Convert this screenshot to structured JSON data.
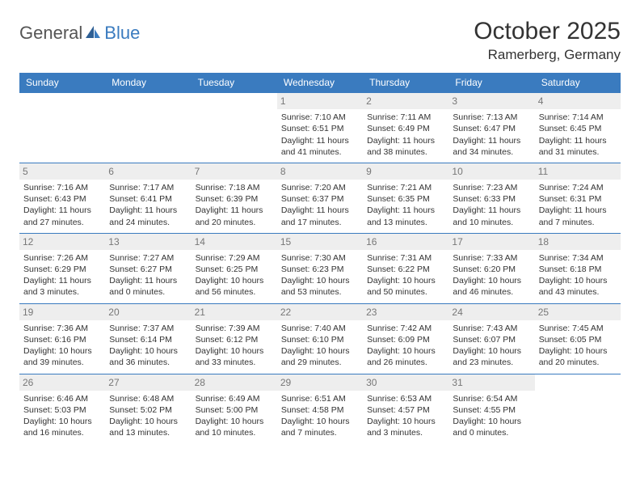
{
  "brand": {
    "part1": "General",
    "part2": "Blue"
  },
  "title": "October 2025",
  "location": "Ramerberg, Germany",
  "colors": {
    "header_bg": "#3a7bbf",
    "header_text": "#ffffff",
    "daynum_bg": "#eeeeee",
    "daynum_text": "#777777",
    "border": "#3a7bbf",
    "body_text": "#333333",
    "background": "#ffffff"
  },
  "weekdays": [
    "Sunday",
    "Monday",
    "Tuesday",
    "Wednesday",
    "Thursday",
    "Friday",
    "Saturday"
  ],
  "weeks": [
    [
      null,
      null,
      null,
      {
        "d": "1",
        "sr": "Sunrise: 7:10 AM",
        "ss": "Sunset: 6:51 PM",
        "dl1": "Daylight: 11 hours",
        "dl2": "and 41 minutes."
      },
      {
        "d": "2",
        "sr": "Sunrise: 7:11 AM",
        "ss": "Sunset: 6:49 PM",
        "dl1": "Daylight: 11 hours",
        "dl2": "and 38 minutes."
      },
      {
        "d": "3",
        "sr": "Sunrise: 7:13 AM",
        "ss": "Sunset: 6:47 PM",
        "dl1": "Daylight: 11 hours",
        "dl2": "and 34 minutes."
      },
      {
        "d": "4",
        "sr": "Sunrise: 7:14 AM",
        "ss": "Sunset: 6:45 PM",
        "dl1": "Daylight: 11 hours",
        "dl2": "and 31 minutes."
      }
    ],
    [
      {
        "d": "5",
        "sr": "Sunrise: 7:16 AM",
        "ss": "Sunset: 6:43 PM",
        "dl1": "Daylight: 11 hours",
        "dl2": "and 27 minutes."
      },
      {
        "d": "6",
        "sr": "Sunrise: 7:17 AM",
        "ss": "Sunset: 6:41 PM",
        "dl1": "Daylight: 11 hours",
        "dl2": "and 24 minutes."
      },
      {
        "d": "7",
        "sr": "Sunrise: 7:18 AM",
        "ss": "Sunset: 6:39 PM",
        "dl1": "Daylight: 11 hours",
        "dl2": "and 20 minutes."
      },
      {
        "d": "8",
        "sr": "Sunrise: 7:20 AM",
        "ss": "Sunset: 6:37 PM",
        "dl1": "Daylight: 11 hours",
        "dl2": "and 17 minutes."
      },
      {
        "d": "9",
        "sr": "Sunrise: 7:21 AM",
        "ss": "Sunset: 6:35 PM",
        "dl1": "Daylight: 11 hours",
        "dl2": "and 13 minutes."
      },
      {
        "d": "10",
        "sr": "Sunrise: 7:23 AM",
        "ss": "Sunset: 6:33 PM",
        "dl1": "Daylight: 11 hours",
        "dl2": "and 10 minutes."
      },
      {
        "d": "11",
        "sr": "Sunrise: 7:24 AM",
        "ss": "Sunset: 6:31 PM",
        "dl1": "Daylight: 11 hours",
        "dl2": "and 7 minutes."
      }
    ],
    [
      {
        "d": "12",
        "sr": "Sunrise: 7:26 AM",
        "ss": "Sunset: 6:29 PM",
        "dl1": "Daylight: 11 hours",
        "dl2": "and 3 minutes."
      },
      {
        "d": "13",
        "sr": "Sunrise: 7:27 AM",
        "ss": "Sunset: 6:27 PM",
        "dl1": "Daylight: 11 hours",
        "dl2": "and 0 minutes."
      },
      {
        "d": "14",
        "sr": "Sunrise: 7:29 AM",
        "ss": "Sunset: 6:25 PM",
        "dl1": "Daylight: 10 hours",
        "dl2": "and 56 minutes."
      },
      {
        "d": "15",
        "sr": "Sunrise: 7:30 AM",
        "ss": "Sunset: 6:23 PM",
        "dl1": "Daylight: 10 hours",
        "dl2": "and 53 minutes."
      },
      {
        "d": "16",
        "sr": "Sunrise: 7:31 AM",
        "ss": "Sunset: 6:22 PM",
        "dl1": "Daylight: 10 hours",
        "dl2": "and 50 minutes."
      },
      {
        "d": "17",
        "sr": "Sunrise: 7:33 AM",
        "ss": "Sunset: 6:20 PM",
        "dl1": "Daylight: 10 hours",
        "dl2": "and 46 minutes."
      },
      {
        "d": "18",
        "sr": "Sunrise: 7:34 AM",
        "ss": "Sunset: 6:18 PM",
        "dl1": "Daylight: 10 hours",
        "dl2": "and 43 minutes."
      }
    ],
    [
      {
        "d": "19",
        "sr": "Sunrise: 7:36 AM",
        "ss": "Sunset: 6:16 PM",
        "dl1": "Daylight: 10 hours",
        "dl2": "and 39 minutes."
      },
      {
        "d": "20",
        "sr": "Sunrise: 7:37 AM",
        "ss": "Sunset: 6:14 PM",
        "dl1": "Daylight: 10 hours",
        "dl2": "and 36 minutes."
      },
      {
        "d": "21",
        "sr": "Sunrise: 7:39 AM",
        "ss": "Sunset: 6:12 PM",
        "dl1": "Daylight: 10 hours",
        "dl2": "and 33 minutes."
      },
      {
        "d": "22",
        "sr": "Sunrise: 7:40 AM",
        "ss": "Sunset: 6:10 PM",
        "dl1": "Daylight: 10 hours",
        "dl2": "and 29 minutes."
      },
      {
        "d": "23",
        "sr": "Sunrise: 7:42 AM",
        "ss": "Sunset: 6:09 PM",
        "dl1": "Daylight: 10 hours",
        "dl2": "and 26 minutes."
      },
      {
        "d": "24",
        "sr": "Sunrise: 7:43 AM",
        "ss": "Sunset: 6:07 PM",
        "dl1": "Daylight: 10 hours",
        "dl2": "and 23 minutes."
      },
      {
        "d": "25",
        "sr": "Sunrise: 7:45 AM",
        "ss": "Sunset: 6:05 PM",
        "dl1": "Daylight: 10 hours",
        "dl2": "and 20 minutes."
      }
    ],
    [
      {
        "d": "26",
        "sr": "Sunrise: 6:46 AM",
        "ss": "Sunset: 5:03 PM",
        "dl1": "Daylight: 10 hours",
        "dl2": "and 16 minutes."
      },
      {
        "d": "27",
        "sr": "Sunrise: 6:48 AM",
        "ss": "Sunset: 5:02 PM",
        "dl1": "Daylight: 10 hours",
        "dl2": "and 13 minutes."
      },
      {
        "d": "28",
        "sr": "Sunrise: 6:49 AM",
        "ss": "Sunset: 5:00 PM",
        "dl1": "Daylight: 10 hours",
        "dl2": "and 10 minutes."
      },
      {
        "d": "29",
        "sr": "Sunrise: 6:51 AM",
        "ss": "Sunset: 4:58 PM",
        "dl1": "Daylight: 10 hours",
        "dl2": "and 7 minutes."
      },
      {
        "d": "30",
        "sr": "Sunrise: 6:53 AM",
        "ss": "Sunset: 4:57 PM",
        "dl1": "Daylight: 10 hours",
        "dl2": "and 3 minutes."
      },
      {
        "d": "31",
        "sr": "Sunrise: 6:54 AM",
        "ss": "Sunset: 4:55 PM",
        "dl1": "Daylight: 10 hours",
        "dl2": "and 0 minutes."
      },
      null
    ]
  ]
}
